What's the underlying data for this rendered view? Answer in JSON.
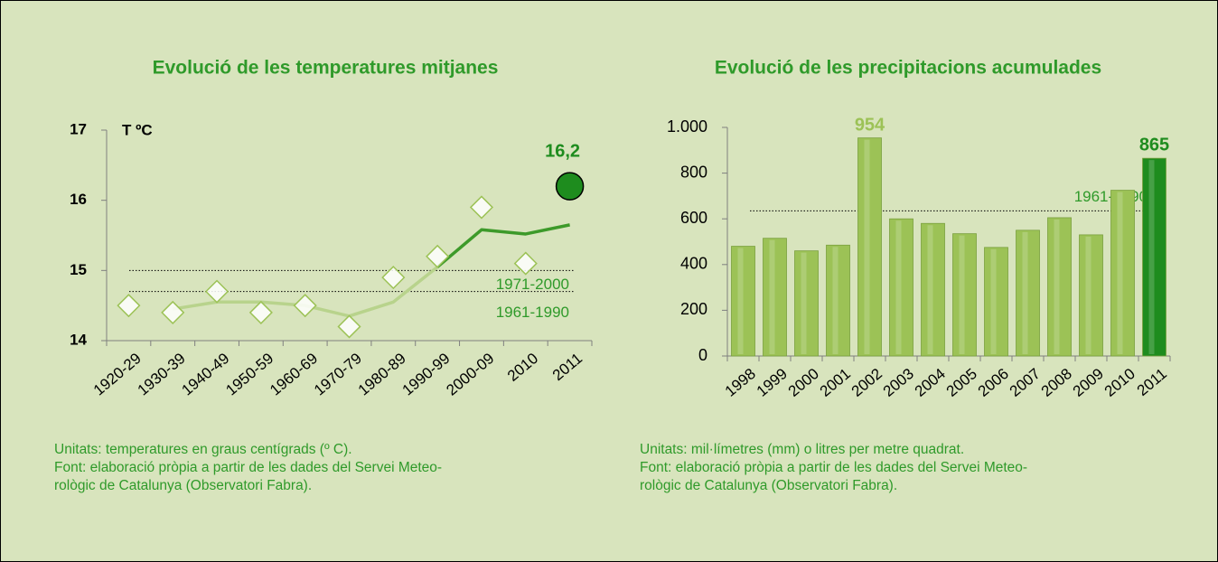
{
  "chart_data": [
    {
      "type": "line",
      "title": "Evolució de les temperatures mitjanes",
      "ylabel": "T ºC",
      "categories": [
        "1920-29",
        "1930-39",
        "1940-49",
        "1950-59",
        "1960-69",
        "1970-79",
        "1980-89",
        "1990-99",
        "2000-09",
        "2010",
        "2011"
      ],
      "series": [
        {
          "marker": "diamond",
          "color": "#ffffff",
          "values": [
            14.5,
            14.4,
            14.7,
            14.4,
            14.5,
            14.2,
            14.9,
            15.2,
            15.9,
            15.1,
            null
          ]
        },
        {
          "marker": "circle",
          "color": "#1e8c1e",
          "values": [
            null,
            null,
            null,
            null,
            null,
            null,
            null,
            null,
            null,
            null,
            16.2
          ],
          "value_labels": [
            null,
            null,
            null,
            null,
            null,
            null,
            null,
            null,
            null,
            null,
            "16,2"
          ]
        },
        {
          "marker": "line",
          "color": "#b8d38c",
          "values": [
            null,
            14.45,
            14.55,
            14.55,
            14.5,
            14.35,
            14.55,
            15.05,
            null,
            null,
            null
          ]
        },
        {
          "marker": "line",
          "color": "#3d9a2a",
          "values": [
            null,
            null,
            null,
            null,
            null,
            null,
            null,
            15.05,
            15.58,
            15.52,
            15.65
          ]
        }
      ],
      "reference_lines": [
        {
          "value": 15.0,
          "label": "1971-2000"
        },
        {
          "value": 14.7,
          "label": "1961-1990"
        }
      ],
      "ylim": [
        14,
        17
      ],
      "yticks": [
        14,
        15,
        16,
        17
      ],
      "grid": false,
      "notes": [
        "Unitats: temperatures en graus centígrads (º C).",
        "Font: elaboració pròpia a partir de les dades del Servei Meteo-",
        "rològic de Catalunya (Observatori Fabra)."
      ]
    },
    {
      "type": "bar",
      "title": "Evolució de les precipitacions acumulades",
      "categories": [
        "1998",
        "1999",
        "2000",
        "2001",
        "2002",
        "2003",
        "2004",
        "2005",
        "2006",
        "2007",
        "2008",
        "2009",
        "2010",
        "2011"
      ],
      "values": [
        480,
        515,
        460,
        485,
        954,
        600,
        580,
        535,
        475,
        550,
        605,
        530,
        725,
        865
      ],
      "value_labels": [
        null,
        null,
        null,
        null,
        "954",
        null,
        null,
        null,
        null,
        null,
        null,
        null,
        null,
        "865"
      ],
      "colors": [
        "#9cc256",
        "#9cc256",
        "#9cc256",
        "#9cc256",
        "#9cc256",
        "#9cc256",
        "#9cc256",
        "#9cc256",
        "#9cc256",
        "#9cc256",
        "#9cc256",
        "#9cc256",
        "#9cc256",
        "#1e8c1e"
      ],
      "label_colors": [
        null,
        null,
        null,
        null,
        "#9cc256",
        null,
        null,
        null,
        null,
        null,
        null,
        null,
        null,
        "#1e8c1e"
      ],
      "reference_lines": [
        {
          "value": 635,
          "label": "1961-1990"
        }
      ],
      "ylim": [
        0,
        1000
      ],
      "yticks": [
        0,
        200,
        400,
        600,
        800,
        {
          "value": 1000,
          "label": "1.000"
        }
      ],
      "grid": false,
      "notes": [
        "Unitats: mil·límetres (mm) o litres per metre quadrat.",
        "Font: elaboració pròpia a partir de les dades del Servei Meteo-",
        "rològic de Catalunya (Observatori Fabra)."
      ]
    }
  ]
}
